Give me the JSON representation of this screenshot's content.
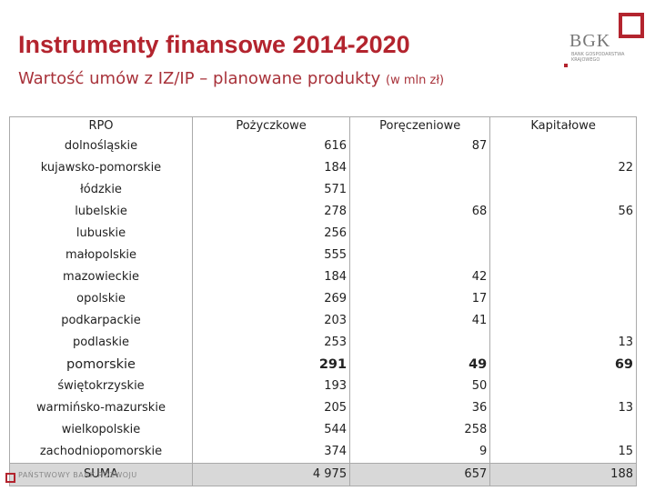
{
  "header": {
    "title": "Instrumenty finansowe 2014-2020",
    "subtitle": "Wartość umów z IZ/IP – planowane produkty",
    "unit": "(w mln zł)"
  },
  "logo": {
    "name": "BGK",
    "tagline": "BANK GOSPODARSTWA KRAJOWEGO"
  },
  "footer": {
    "text": "PAŃSTWOWY BANK ROZWOJU"
  },
  "table": {
    "columns": [
      "RPO",
      "Pożyczkowe",
      "Poręczeniowe",
      "Kapitałowe"
    ],
    "rows": [
      [
        "dolnośląskie",
        "616",
        "87",
        null
      ],
      [
        "kujawsko-pomorskie",
        "184",
        null,
        "22"
      ],
      [
        "łódzkie",
        "571",
        null,
        null
      ],
      [
        "lubelskie",
        "278",
        "68",
        "56"
      ],
      [
        "lubuskie",
        "256",
        null,
        null
      ],
      [
        "małopolskie",
        "555",
        null,
        null
      ],
      [
        "mazowieckie",
        "184",
        "42",
        null
      ],
      [
        "opolskie",
        "269",
        "17",
        null
      ],
      [
        "podkarpackie",
        "203",
        "41",
        null
      ],
      [
        "podlaskie",
        "253",
        null,
        "13"
      ],
      [
        "pomorskie",
        "291",
        "49",
        "69"
      ],
      [
        "świętokrzyskie",
        "193",
        "50",
        null
      ],
      [
        "warmińsko-mazurskie",
        "205",
        "36",
        "13"
      ],
      [
        "wielkopolskie",
        "544",
        "258",
        null
      ],
      [
        "zachodniopomorskie",
        "374",
        "9",
        "15"
      ],
      [
        "SUMA",
        "4 975",
        "657",
        "188"
      ]
    ],
    "highlight_row": 10,
    "total_row": 15
  }
}
